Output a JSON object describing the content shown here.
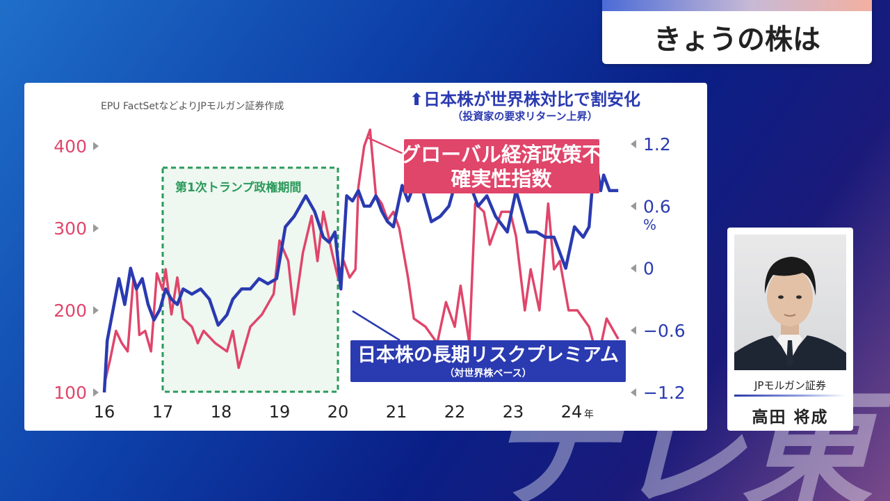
{
  "header": {
    "title": "きょうの株は"
  },
  "watermark": "テレ東",
  "presenter": {
    "org": "JPモルガン証券",
    "name": "高田 将成"
  },
  "chart_data": {
    "type": "line",
    "source": "EPU FactSetなどよりJPモルガン証券作成",
    "annotation_top": "⬆日本株が世界株対比で割安化",
    "annotation_top_sub": "（投資家の要求リターン上昇）",
    "period_label": "第1次トランプ政権期間",
    "period": [
      17,
      20
    ],
    "x_ticks": [
      "16",
      "17",
      "18",
      "19",
      "20",
      "21",
      "22",
      "23",
      "24"
    ],
    "x_unit": "年",
    "y_left_ticks": [
      "100",
      "200",
      "300",
      "400"
    ],
    "y_right_ticks": [
      "1.2",
      "0.6",
      "0",
      "−0.6",
      "−1.2"
    ],
    "y_right_unit": "%",
    "y_left_range": [
      100,
      400
    ],
    "y_right_range": [
      -1.2,
      1.2
    ],
    "colors": {
      "epu": "#e0456a",
      "erp": "#2a3ab0",
      "period": "#2a9a5a"
    },
    "series": [
      {
        "name": "グローバル経済政策不確実性指数",
        "axis": "left",
        "x": [
          16.0,
          16.1,
          16.2,
          16.3,
          16.4,
          16.5,
          16.55,
          16.6,
          16.7,
          16.8,
          16.9,
          17.0,
          17.05,
          17.15,
          17.25,
          17.35,
          17.5,
          17.6,
          17.7,
          17.9,
          18.1,
          18.2,
          18.3,
          18.5,
          18.7,
          18.9,
          19.0,
          19.15,
          19.25,
          19.4,
          19.55,
          19.65,
          19.75,
          19.9,
          20.0,
          20.1,
          20.2,
          20.3,
          20.35,
          20.45,
          20.55,
          20.65,
          20.75,
          20.85,
          20.95,
          21.05,
          21.2,
          21.3,
          21.5,
          21.7,
          21.85,
          22.0,
          22.1,
          22.25,
          22.35,
          22.5,
          22.6,
          22.8,
          22.95,
          23.05,
          23.2,
          23.3,
          23.45,
          23.6,
          23.7,
          23.8,
          23.95,
          24.1,
          24.3,
          24.45,
          24.6,
          24.8
        ],
        "values": [
          110,
          140,
          175,
          160,
          150,
          240,
          230,
          170,
          175,
          150,
          245,
          225,
          250,
          195,
          240,
          190,
          180,
          160,
          175,
          160,
          150,
          175,
          130,
          180,
          195,
          220,
          285,
          260,
          195,
          270,
          315,
          260,
          320,
          270,
          240,
          260,
          240,
          250,
          350,
          400,
          420,
          340,
          330,
          310,
          320,
          300,
          240,
          190,
          180,
          160,
          210,
          180,
          230,
          160,
          330,
          320,
          280,
          320,
          320,
          290,
          200,
          250,
          200,
          330,
          250,
          260,
          200,
          200,
          180,
          140,
          190,
          165
        ]
      },
      {
        "name": "日本株の長期リスクプレミアム",
        "axis": "right",
        "x": [
          16.0,
          16.05,
          16.15,
          16.25,
          16.35,
          16.45,
          16.55,
          16.65,
          16.75,
          16.85,
          16.95,
          17.05,
          17.15,
          17.25,
          17.35,
          17.5,
          17.65,
          17.8,
          17.95,
          18.1,
          18.2,
          18.35,
          18.5,
          18.65,
          18.8,
          18.95,
          19.1,
          19.25,
          19.35,
          19.45,
          19.6,
          19.75,
          19.85,
          19.95,
          20.05,
          20.15,
          20.25,
          20.35,
          20.45,
          20.55,
          20.65,
          20.75,
          20.85,
          20.95,
          21.1,
          21.2,
          21.3,
          21.45,
          21.6,
          21.75,
          21.9,
          22.1,
          22.3,
          22.4,
          22.55,
          22.7,
          22.9,
          23.05,
          23.25,
          23.4,
          23.55,
          23.7,
          23.9,
          24.05,
          24.2,
          24.3,
          24.4,
          24.5,
          24.55,
          24.65,
          24.8
        ],
        "values": [
          -1.2,
          -0.7,
          -0.4,
          -0.1,
          -0.35,
          0.0,
          -0.2,
          -0.1,
          -0.35,
          -0.5,
          -0.4,
          -0.2,
          -0.3,
          -0.35,
          -0.2,
          -0.25,
          -0.2,
          -0.3,
          -0.55,
          -0.45,
          -0.3,
          -0.2,
          -0.2,
          -0.1,
          -0.15,
          -0.1,
          0.4,
          0.5,
          0.6,
          0.7,
          0.55,
          0.3,
          0.25,
          0.35,
          -0.2,
          0.7,
          0.65,
          0.75,
          0.6,
          0.6,
          0.7,
          0.55,
          0.45,
          0.4,
          0.8,
          0.65,
          0.8,
          0.75,
          0.45,
          0.5,
          0.6,
          1.0,
          0.75,
          0.6,
          0.7,
          0.5,
          0.35,
          0.75,
          0.35,
          0.35,
          0.3,
          0.3,
          0.0,
          0.4,
          0.3,
          0.4,
          1.1,
          0.75,
          0.9,
          0.75,
          0.75
        ]
      }
    ]
  }
}
